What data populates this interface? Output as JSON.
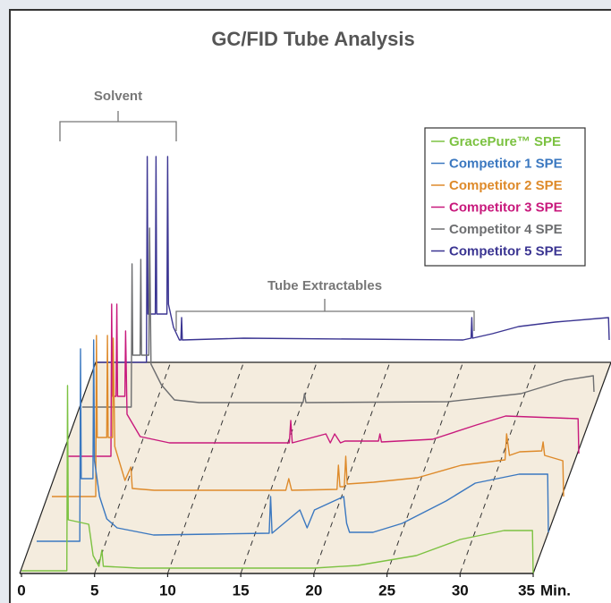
{
  "chart_data": {
    "type": "waterfall",
    "title": "GC/FID Tube Analysis",
    "annotations": [
      "Solvent",
      "Tube Extractables"
    ],
    "xlabel": "Min.",
    "xlim": [
      0,
      35
    ],
    "xticks": [
      0,
      5,
      10,
      15,
      20,
      25,
      30,
      35
    ],
    "series": [
      {
        "name": "GracePure™ SPE",
        "color": "#7cc242",
        "x": [
          0,
          3.1,
          3.15,
          3.2,
          4.6,
          4.9,
          5.3,
          5.5,
          5.6,
          8,
          20,
          23,
          27,
          30,
          33,
          34.95,
          35
        ],
        "values": [
          3,
          3,
          210,
          60,
          55,
          20,
          8,
          26,
          8,
          6,
          6,
          9,
          20,
          38,
          48,
          48,
          0
        ]
      },
      {
        "name": "Competitor 1 SPE",
        "color": "#3b78c0",
        "x": [
          0,
          2.95,
          3.0,
          3.05,
          3.85,
          3.9,
          3.95,
          4.3,
          4.8,
          5.5,
          8,
          12,
          15.9,
          16,
          16.1,
          18,
          18.5,
          19,
          21,
          21.2,
          21.4,
          23,
          25,
          28,
          30,
          33,
          34.95,
          35
        ],
        "values": [
          -10,
          -10,
          205,
          60,
          60,
          215,
          80,
          40,
          15,
          5,
          -3,
          -2,
          -1,
          40,
          -1,
          25,
          5,
          25,
          40,
          10,
          0,
          0,
          10,
          35,
          55,
          65,
          65,
          0
        ]
      },
      {
        "name": "Competitor 2 SPE",
        "color": "#de8a2a",
        "x": [
          0,
          3.0,
          3.05,
          3.1,
          3.75,
          3.8,
          3.85,
          4.15,
          4.2,
          4.3,
          5,
          5.4,
          5.5,
          7,
          16,
          16.2,
          16.4,
          19.5,
          19.6,
          19.7,
          20,
          20.1,
          20.2,
          22,
          25,
          28,
          31,
          31.1,
          31.3,
          32,
          33.5,
          33.6,
          33.7,
          34.95,
          35
        ],
        "values": [
          -6,
          -6,
          174,
          60,
          60,
          174,
          60,
          60,
          171,
          50,
          12,
          27,
          3,
          1,
          1,
          14,
          1,
          2,
          29,
          5,
          5,
          39,
          8,
          10,
          15,
          29,
          35,
          64,
          40,
          44,
          45,
          55,
          40,
          34,
          -6
        ]
      },
      {
        "name": "Competitor 3 SPE",
        "color": "#c8197c",
        "x": [
          0,
          3.0,
          3.05,
          3.1,
          3.35,
          3.4,
          3.45,
          3.95,
          4.0,
          4.1,
          5,
          7,
          15.2,
          15.3,
          15.4,
          17.7,
          18,
          18.3,
          18.7,
          19,
          21.3,
          21.4,
          21.5,
          25,
          28,
          30,
          34.95,
          35
        ],
        "values": [
          -7,
          -7,
          163,
          60,
          60,
          163,
          60,
          60,
          133,
          40,
          15,
          8,
          8,
          33,
          8,
          18,
          8,
          18,
          8,
          10,
          10,
          18,
          9,
          12,
          28,
          38,
          35,
          -4
        ]
      },
      {
        "name": "Competitor 4 SPE",
        "color": "#6d6e70",
        "x": [
          0,
          3.35,
          3.4,
          3.45,
          3.95,
          4.0,
          4.05,
          4.55,
          4.6,
          4.7,
          5.4,
          6.3,
          8,
          15.1,
          15.2,
          15.3,
          25,
          30,
          33,
          34.95,
          35
        ],
        "values": [
          2,
          2,
          162,
          60,
          60,
          167,
          60,
          60,
          202,
          50,
          27,
          10,
          7,
          7,
          17,
          7,
          8,
          17,
          32,
          37,
          19
        ]
      },
      {
        "name": "Competitor 5 SPE",
        "color": "#3b3592",
        "x": [
          0,
          3.35,
          3.4,
          3.45,
          3.95,
          4.0,
          4.05,
          4.75,
          4.8,
          4.85,
          5.2,
          5.6,
          5.7,
          5.75,
          5.8,
          10,
          25,
          25.55,
          25.6,
          25.65,
          27,
          28.8,
          31.3,
          34.95,
          35
        ],
        "values": [
          6,
          6,
          236,
          60,
          60,
          236,
          60,
          60,
          236,
          71,
          45,
          31,
          31,
          56,
          31,
          33,
          31,
          33,
          56,
          33,
          38,
          46,
          51,
          56,
          31
        ]
      }
    ]
  }
}
